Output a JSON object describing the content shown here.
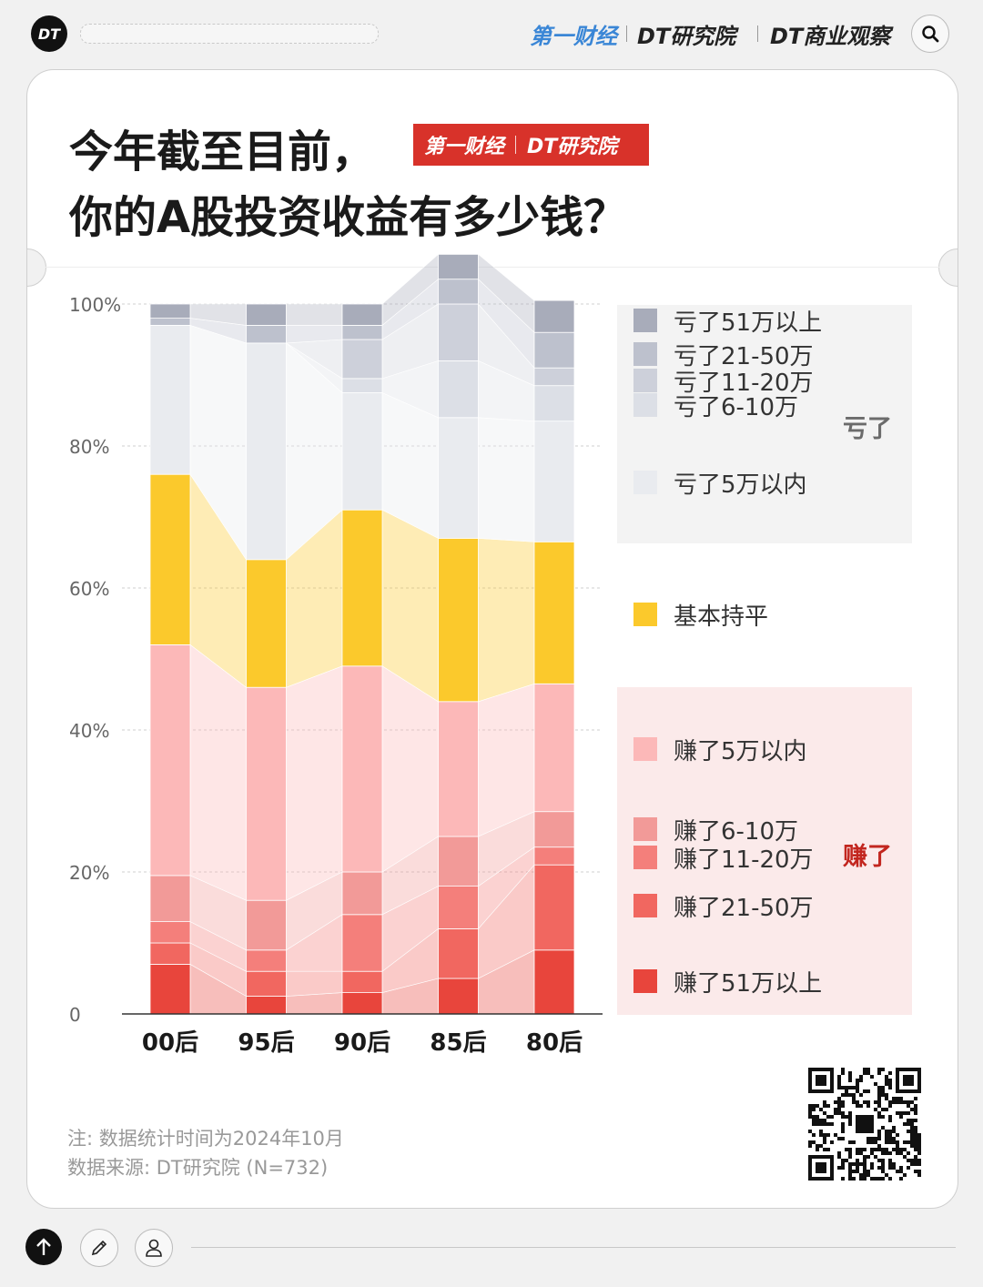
{
  "topbar": {
    "logo": "DT",
    "brands": [
      "第一财经",
      "DT研究院",
      "DT商业观察"
    ]
  },
  "header": {
    "title_line1": "今年截至目前，",
    "title_line2": "你的A股投资收益有多少钱？",
    "badge_brand1": "第一财经",
    "badge_brand2": "DT研究院"
  },
  "chart_data": {
    "type": "bar",
    "stacked": true,
    "normalized": true,
    "categories": [
      "00后",
      "95后",
      "90后",
      "85后",
      "80后"
    ],
    "ylim": [
      0,
      100
    ],
    "yticks": [
      "0",
      "20%",
      "40%",
      "60%",
      "80%",
      "100%"
    ],
    "grid": true,
    "legend_position": "right",
    "series": [
      {
        "name": "赚了51万以上",
        "group": "赚了",
        "color": "#e8453c",
        "values": [
          7,
          2.5,
          3,
          5,
          9
        ]
      },
      {
        "name": "赚了21-50万",
        "group": "赚了",
        "color": "#f16760",
        "values": [
          3,
          3.5,
          3,
          7,
          12
        ]
      },
      {
        "name": "赚了11-20万",
        "group": "赚了",
        "color": "#f47f7b",
        "values": [
          3,
          3,
          8,
          6,
          2.5
        ]
      },
      {
        "name": "赚了6-10万",
        "group": "赚了",
        "color": "#f29a98",
        "values": [
          6.5,
          7,
          6,
          7,
          5
        ]
      },
      {
        "name": "赚了5万以内",
        "group": "赚了",
        "color": "#fcb8b8",
        "values": [
          32.5,
          30,
          29,
          19,
          18
        ]
      },
      {
        "name": "基本持平",
        "group": "持平",
        "color": "#fbc92c",
        "values": [
          24,
          18,
          22,
          23,
          20
        ]
      },
      {
        "name": "亏了5万以内",
        "group": "亏了",
        "color": "#e9ebef",
        "values": [
          21,
          30.5,
          16.5,
          17,
          17
        ]
      },
      {
        "name": "亏了6-10万",
        "group": "亏了",
        "color": "#dcdfe6",
        "values": [
          0,
          0,
          2,
          8,
          5
        ]
      },
      {
        "name": "亏了11-20万",
        "group": "亏了",
        "color": "#cdd0da",
        "values": [
          0,
          0,
          5.5,
          8,
          2.5
        ]
      },
      {
        "name": "亏了21-50万",
        "group": "亏了",
        "color": "#bdc1cd",
        "values": [
          1,
          2.5,
          2,
          3.5,
          5
        ]
      },
      {
        "name": "亏了51万以上",
        "group": "亏了",
        "color": "#a8acba",
        "values": [
          2,
          3,
          3,
          3.5,
          4.5
        ]
      }
    ],
    "group_labels": {
      "lose": "亏了",
      "win": "赚了"
    }
  },
  "notes": {
    "line1": "注: 数据统计时间为2024年10月",
    "line2": "数据来源: DT研究院 (N=732)"
  }
}
